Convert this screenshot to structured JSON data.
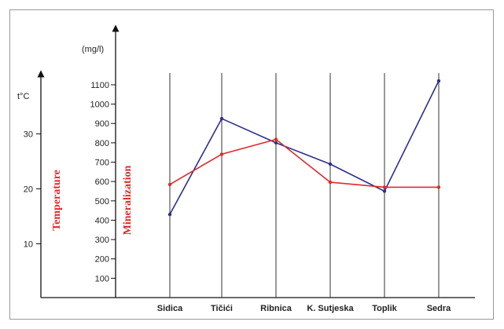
{
  "chart_data": {
    "type": "line",
    "categories": [
      "Sidica",
      "Tičići",
      "Ribnica",
      "K. Sutjeska",
      "Toplik",
      "Sedra"
    ],
    "left_axis": {
      "unit_label": "t°C",
      "rotated_label": "Temperature",
      "ticks": [
        "10",
        "20",
        "30"
      ],
      "tick_values": [
        10,
        20,
        30
      ],
      "ylim": [
        0,
        40
      ]
    },
    "right_axis": {
      "unit_label": "(mg/l)",
      "rotated_label": "Mineralization",
      "ticks": [
        "100",
        "200",
        "300",
        "400",
        "500",
        "600",
        "700",
        "800",
        "900",
        "1000",
        "1100"
      ],
      "tick_values": [
        100,
        200,
        300,
        400,
        500,
        600,
        700,
        800,
        900,
        1000,
        1100
      ],
      "ylim": [
        0,
        1200
      ]
    },
    "series": [
      {
        "axis": "right",
        "color": "#2e2e8f",
        "values": [
          430,
          925,
          800,
          690,
          550,
          1120
        ]
      },
      {
        "axis": "left",
        "color": "#e0282b",
        "values": [
          20.8,
          26.3,
          29.0,
          21.2,
          20.3,
          20.3
        ]
      }
    ],
    "grid": "vertical-only"
  }
}
